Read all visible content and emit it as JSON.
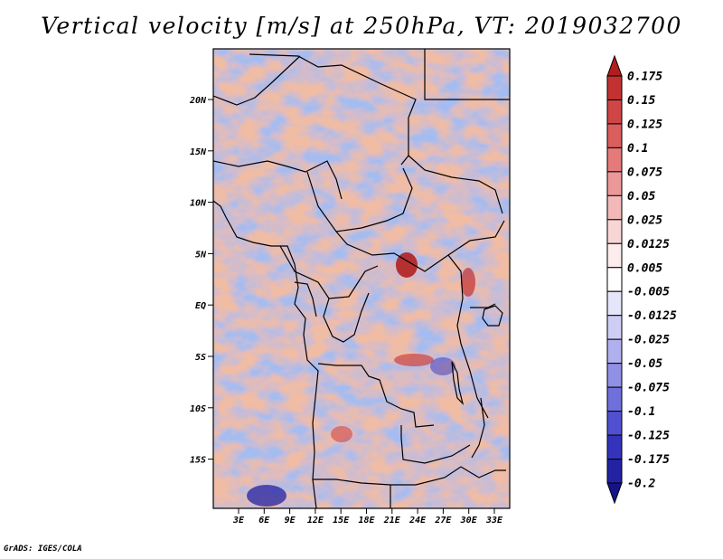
{
  "title": "Vertical velocity [m/s] at 250hPa, VT: 2019032700",
  "footer": "GrADS: IGES/COLA",
  "map": {
    "lat_labels": [
      "20N",
      "15N",
      "10N",
      "5N",
      "EQ",
      "5S",
      "10S",
      "15S"
    ],
    "lon_labels": [
      "3E",
      "6E",
      "9E",
      "12E",
      "15E",
      "18E",
      "21E",
      "24E",
      "27E",
      "30E",
      "33E"
    ]
  },
  "colorbar": {
    "labels": [
      "0.175",
      "0.15",
      "0.125",
      "0.1",
      "0.075",
      "0.05",
      "0.025",
      "0.0125",
      "0.005",
      "-0.005",
      "-0.0125",
      "-0.025",
      "-0.05",
      "-0.075",
      "-0.1",
      "-0.125",
      "-0.175",
      "-0.2"
    ],
    "colors": [
      "#b21e1e",
      "#c33232",
      "#cf4646",
      "#da5e5e",
      "#e47a7a",
      "#ec9898",
      "#f3b8b8",
      "#f8d6d6",
      "#fcecec",
      "#ffffff",
      "#e6e6fb",
      "#cdcdf5",
      "#b0b0ee",
      "#9090e6",
      "#7070dd",
      "#5050d0",
      "#3333bb",
      "#2222a3",
      "#141488"
    ]
  },
  "icons": {
    "colorbar_top": "triangle-up-icon",
    "colorbar_bottom": "triangle-down-icon"
  }
}
